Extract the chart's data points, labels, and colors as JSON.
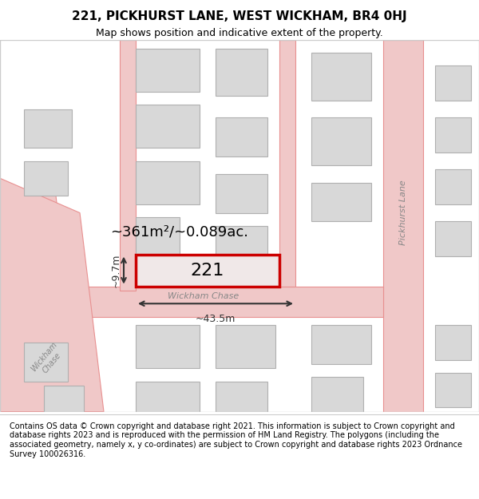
{
  "title": "221, PICKHURST LANE, WEST WICKHAM, BR4 0HJ",
  "subtitle": "Map shows position and indicative extent of the property.",
  "footer": "Contains OS data © Crown copyright and database right 2021. This information is subject to Crown copyright and database rights 2023 and is reproduced with the permission of HM Land Registry. The polygons (including the associated geometry, namely x, y co-ordinates) are subject to Crown copyright and database rights 2023 Ordnance Survey 100026316.",
  "bg_color": "#ffffff",
  "map_bg": "#f5f5f5",
  "road_color": "#f0c8c8",
  "road_outline": "#e89090",
  "building_fill": "#d8d8d8",
  "building_outline": "#b0b0b0",
  "highlight_fill": "#f0e8e8",
  "highlight_outline": "#cc0000",
  "highlight_lw": 2.5,
  "area_text": "~361m²/~0.089ac.",
  "plot_number": "221",
  "dim_width": "~43.5m",
  "dim_height": "~9.7m",
  "road_label_1": "Wickham Chase",
  "road_label_2": "Pickhurst Lane"
}
